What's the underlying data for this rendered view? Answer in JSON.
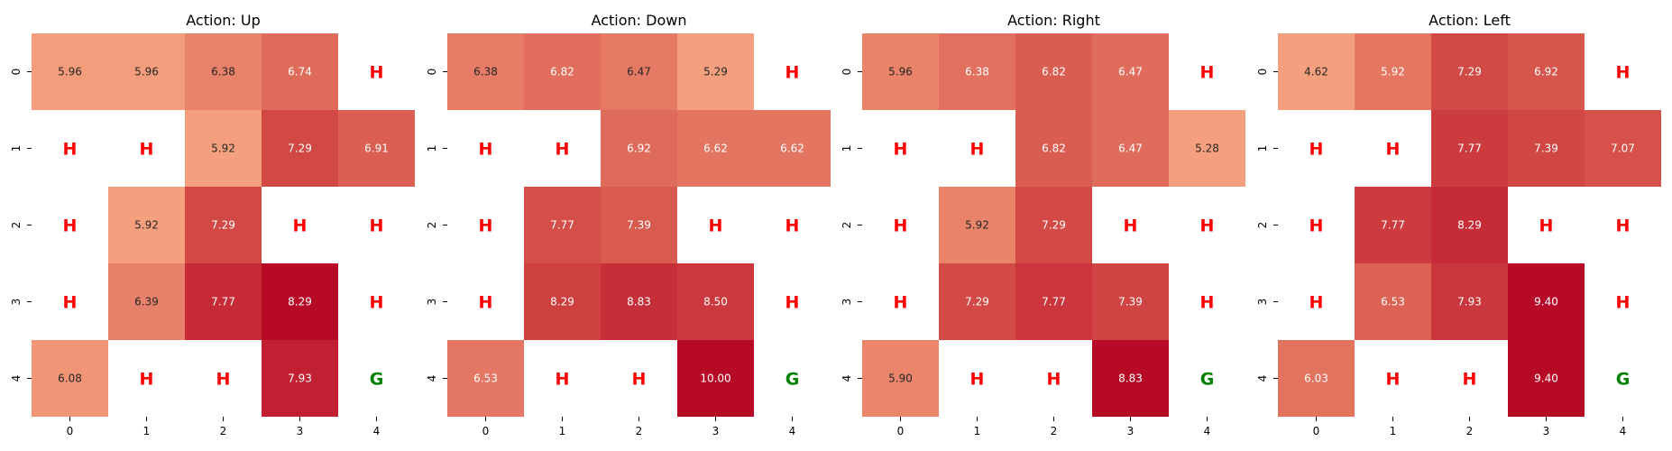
{
  "chart_data": [
    {
      "type": "heatmap",
      "title": "Action: Up",
      "xticks": [
        "0",
        "1",
        "2",
        "3",
        "4"
      ],
      "yticks": [
        "0",
        "1",
        "2",
        "3",
        "4"
      ],
      "cells": [
        [
          "5.96",
          "5.96",
          "6.38",
          "6.74",
          "H"
        ],
        [
          "H",
          "H",
          "5.92",
          "7.29",
          "6.91"
        ],
        [
          "H",
          "5.92",
          "7.29",
          "H",
          "H"
        ],
        [
          "H",
          "6.39",
          "7.77",
          "8.29",
          "H"
        ],
        [
          "6.08",
          "H",
          "H",
          "7.93",
          "G"
        ]
      ]
    },
    {
      "type": "heatmap",
      "title": "Action: Down",
      "xticks": [
        "0",
        "1",
        "2",
        "3",
        "4"
      ],
      "yticks": [
        "0",
        "1",
        "2",
        "3",
        "4"
      ],
      "cells": [
        [
          "6.38",
          "6.82",
          "6.47",
          "5.29",
          "H"
        ],
        [
          "H",
          "H",
          "6.92",
          "6.62",
          "6.62"
        ],
        [
          "H",
          "7.77",
          "7.39",
          "H",
          "H"
        ],
        [
          "H",
          "8.29",
          "8.83",
          "8.50",
          "H"
        ],
        [
          "6.53",
          "H",
          "H",
          "10.00",
          "G"
        ]
      ]
    },
    {
      "type": "heatmap",
      "title": "Action: Right",
      "xticks": [
        "0",
        "1",
        "2",
        "3",
        "4"
      ],
      "yticks": [
        "0",
        "1",
        "2",
        "3",
        "4"
      ],
      "cells": [
        [
          "5.96",
          "6.38",
          "6.82",
          "6.47",
          "H"
        ],
        [
          "H",
          "H",
          "6.82",
          "6.47",
          "5.28"
        ],
        [
          "H",
          "5.92",
          "7.29",
          "H",
          "H"
        ],
        [
          "H",
          "7.29",
          "7.77",
          "7.39",
          "H"
        ],
        [
          "5.90",
          "H",
          "H",
          "8.83",
          "G"
        ]
      ]
    },
    {
      "type": "heatmap",
      "title": "Action: Left",
      "xticks": [
        "0",
        "1",
        "2",
        "3",
        "4"
      ],
      "yticks": [
        "0",
        "1",
        "2",
        "3",
        "4"
      ],
      "cells": [
        [
          "4.62",
          "5.92",
          "7.29",
          "6.92",
          "H"
        ],
        [
          "H",
          "H",
          "7.77",
          "7.39",
          "7.07"
        ],
        [
          "H",
          "7.77",
          "8.29",
          "H",
          "H"
        ],
        [
          "H",
          "6.53",
          "7.93",
          "9.40",
          "H"
        ],
        [
          "6.03",
          "H",
          "H",
          "9.40",
          "G"
        ]
      ]
    }
  ],
  "colors": {
    "hole_marker": "#ff0000",
    "goal_marker": "#008000",
    "scale_low": "#f4a07e",
    "scale_mid": "#d6534a",
    "scale_high": "#b70a27"
  }
}
